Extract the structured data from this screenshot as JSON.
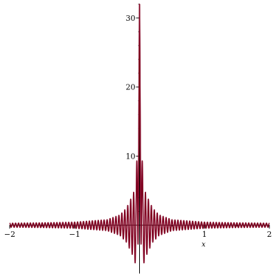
{
  "chart_data": {
    "type": "line",
    "title": "",
    "xlabel": "x",
    "ylabel": "",
    "xlim": [
      -2,
      2
    ],
    "ylim": [
      -7,
      32
    ],
    "x_ticks": [
      -2,
      -1,
      1,
      2
    ],
    "x_tick_labels": [
      "−2",
      "−1",
      "1",
      "2"
    ],
    "y_ticks": [
      10,
      20,
      30
    ],
    "y_tick_labels": [
      "10",
      "20",
      "30"
    ],
    "grid": false,
    "legend": "none",
    "series": [
      {
        "color": "#800020",
        "x": [
          -2.0,
          -1.5,
          -1.0,
          -0.5,
          -0.3,
          -0.2,
          -0.1,
          -0.05,
          0.0,
          0.05,
          0.1,
          0.2,
          0.3,
          0.5,
          1.0,
          1.5,
          2.0
        ],
        "y_envelope_upper": [
          0.3,
          0.35,
          0.45,
          0.8,
          1.5,
          2.5,
          4.5,
          6.0,
          32.0,
          6.0,
          4.5,
          2.5,
          1.5,
          0.8,
          0.45,
          0.35,
          0.3
        ],
        "y_envelope_lower": [
          -0.3,
          -0.35,
          -0.45,
          -0.8,
          -1.5,
          -2.5,
          -4.5,
          -6.0,
          0.0,
          -6.0,
          -4.5,
          -2.5,
          -1.5,
          -0.8,
          -0.45,
          -0.35,
          -0.3
        ],
        "oscillations_per_unit_x": 22
      }
    ]
  }
}
